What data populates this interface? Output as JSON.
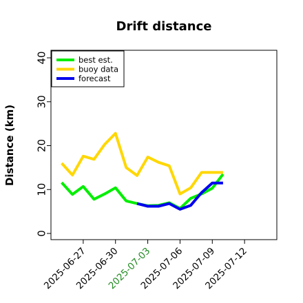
{
  "chart_data": {
    "type": "line",
    "title": "Drift distance",
    "ylabel": "Distance (km)",
    "xlabel": "",
    "ylim": [
      0,
      42
    ],
    "xlim": [
      "2025-06-24",
      "2025-07-15"
    ],
    "yticks": [
      0,
      10,
      20,
      30,
      40
    ],
    "xticks": [
      {
        "label": "2025-06-27",
        "color": "#000000"
      },
      {
        "label": "2025-06-30",
        "color": "#000000"
      },
      {
        "label": "2025-07-03",
        "color": "#228b22"
      },
      {
        "label": "2025-07-06",
        "color": "#000000"
      },
      {
        "label": "2025-07-09",
        "color": "#000000"
      },
      {
        "label": "2025-07-12",
        "color": "#000000"
      }
    ],
    "grid": false,
    "legend_position": "top-left",
    "series": [
      {
        "name": "best est.",
        "color": "#00ee00",
        "x": [
          "2025-06-25",
          "2025-06-26",
          "2025-06-27",
          "2025-06-28",
          "2025-06-29",
          "2025-06-30",
          "2025-07-01",
          "2025-07-02",
          "2025-07-03",
          "2025-07-04",
          "2025-07-05",
          "2025-07-06",
          "2025-07-07",
          "2025-07-08",
          "2025-07-09",
          "2025-07-10"
        ],
        "values": [
          11.6,
          8.9,
          10.7,
          7.8,
          9.0,
          10.4,
          7.4,
          6.8,
          6.3,
          6.4,
          7.0,
          5.7,
          8.0,
          9.0,
          10.3,
          13.5
        ]
      },
      {
        "name": "buoy data",
        "color": "#ffd700",
        "x": [
          "2025-06-25",
          "2025-06-26",
          "2025-06-27",
          "2025-06-28",
          "2025-06-29",
          "2025-06-30",
          "2025-07-01",
          "2025-07-02",
          "2025-07-03",
          "2025-07-04",
          "2025-07-05",
          "2025-07-06",
          "2025-07-07",
          "2025-07-08",
          "2025-07-09",
          "2025-07-10"
        ],
        "values": [
          16.0,
          13.3,
          17.6,
          16.9,
          20.3,
          22.8,
          15.0,
          13.2,
          17.4,
          16.2,
          15.4,
          9.0,
          10.4,
          13.9,
          13.9,
          13.9
        ]
      },
      {
        "name": "forecast",
        "color": "#0000ee",
        "x": [
          "2025-07-02",
          "2025-07-03",
          "2025-07-04",
          "2025-07-05",
          "2025-07-06",
          "2025-07-07",
          "2025-07-08",
          "2025-07-09",
          "2025-07-10"
        ],
        "values": [
          6.8,
          6.2,
          6.2,
          6.8,
          5.5,
          6.4,
          9.3,
          11.5,
          11.5
        ]
      }
    ]
  }
}
